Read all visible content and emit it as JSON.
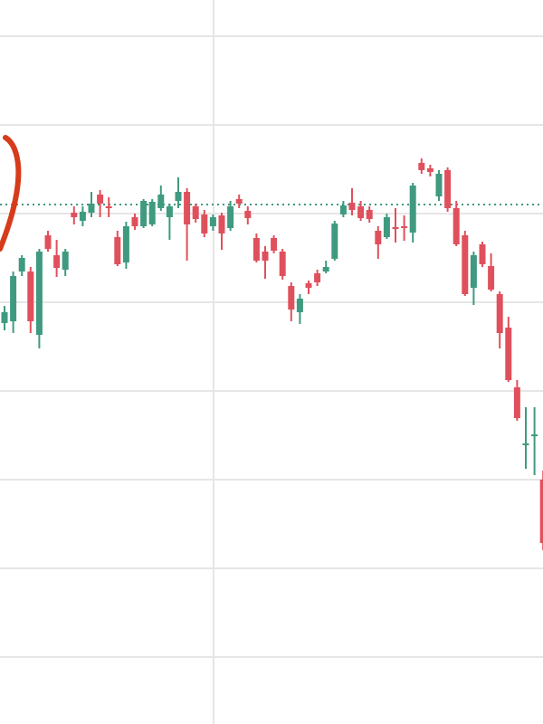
{
  "chart_data": {
    "type": "candlestick",
    "ylim": [
      0,
      800
    ],
    "grid": true,
    "ygrid": [
      760,
      662,
      564,
      466,
      368,
      270,
      172,
      74
    ],
    "reference_line": {
      "value": 574,
      "color": "#3f9a7f",
      "style": "dotted"
    },
    "up_color": "#3f9a7f",
    "down_color": "#e0505c",
    "open": [
      443,
      445,
      500,
      500,
      430,
      540,
      518,
      502,
      565,
      556,
      565,
      585,
      572,
      538,
      510,
      560,
      550,
      552,
      570,
      560,
      578,
      588,
      572,
      563,
      550,
      562,
      548,
      580,
      567,
      537,
      522,
      537,
      522,
      484,
      455,
      487,
      498,
      500,
      514,
      563,
      576,
      572,
      568,
      545,
      538,
      549,
      550,
      543,
      620,
      614,
      583,
      612,
      570,
      540,
      482,
      530,
      506,
      475,
      438,
      372,
      308,
      318,
      270
    ],
    "high": [
      462,
      500,
      518,
      505,
      525,
      545,
      535,
      525,
      572,
      572,
      588,
      590,
      582,
      545,
      555,
      564,
      580,
      580,
      595,
      575,
      604,
      592,
      575,
      568,
      563,
      565,
      578,
      585,
      572,
      542,
      528,
      540,
      525,
      488,
      475,
      490,
      502,
      512,
      556,
      578,
      592,
      578,
      572,
      550,
      564,
      570,
      562,
      598,
      625,
      618,
      612,
      615,
      578,
      545,
      522,
      533,
      520,
      478,
      450,
      380,
      350,
      350,
      280
    ],
    "low": [
      435,
      432,
      495,
      432,
      415,
      522,
      494,
      495,
      552,
      550,
      560,
      560,
      560,
      506,
      503,
      546,
      548,
      550,
      567,
      535,
      570,
      512,
      554,
      538,
      545,
      524,
      545,
      570,
      552,
      510,
      492,
      520,
      491,
      445,
      442,
      475,
      484,
      498,
      512,
      560,
      562,
      556,
      554,
      514,
      536,
      532,
      534,
      532,
      608,
      605,
      578,
      566,
      528,
      473,
      463,
      505,
      478,
      415,
      378,
      335,
      282,
      275,
      192
    ],
    "close": [
      455,
      495,
      515,
      445,
      522,
      525,
      504,
      522,
      560,
      566,
      575,
      575,
      570,
      508,
      550,
      550,
      578,
      577,
      585,
      572,
      588,
      552,
      558,
      542,
      560,
      542,
      572,
      575,
      559,
      512,
      512,
      523,
      495,
      458,
      470,
      482,
      488,
      505,
      553,
      573,
      568,
      559,
      558,
      530,
      560,
      547,
      548,
      595,
      612,
      610,
      608,
      570,
      530,
      475,
      518,
      508,
      480,
      432,
      380,
      338,
      310,
      320,
      200
    ]
  }
}
